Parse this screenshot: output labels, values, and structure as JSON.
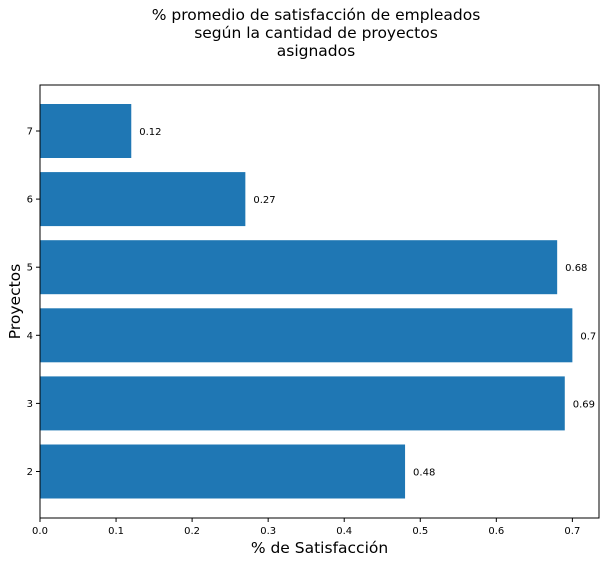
{
  "chart_data": {
    "type": "bar",
    "orientation": "horizontal",
    "title_lines": [
      "% promedio de satisfacción de empleados",
      "según la cantidad de proyectos",
      "asignados"
    ],
    "xlabel": "% de Satisfacción",
    "ylabel": "Proyectos",
    "categories": [
      "2",
      "3",
      "4",
      "5",
      "6",
      "7"
    ],
    "values": [
      0.48,
      0.69,
      0.7,
      0.68,
      0.27,
      0.12
    ],
    "value_labels": [
      "0.48",
      "0.69",
      "0.7",
      "0.68",
      "0.27",
      "0.12"
    ],
    "xlim": [
      0,
      0.735
    ],
    "xticks": [
      0,
      0.1,
      0.2,
      0.3,
      0.4,
      0.5,
      0.6,
      0.7
    ],
    "xtick_labels": [
      "0.0",
      "0.1",
      "0.2",
      "0.3",
      "0.4",
      "0.5",
      "0.6",
      "0.7"
    ],
    "grid": false,
    "bar_color": "#1f77b4"
  }
}
